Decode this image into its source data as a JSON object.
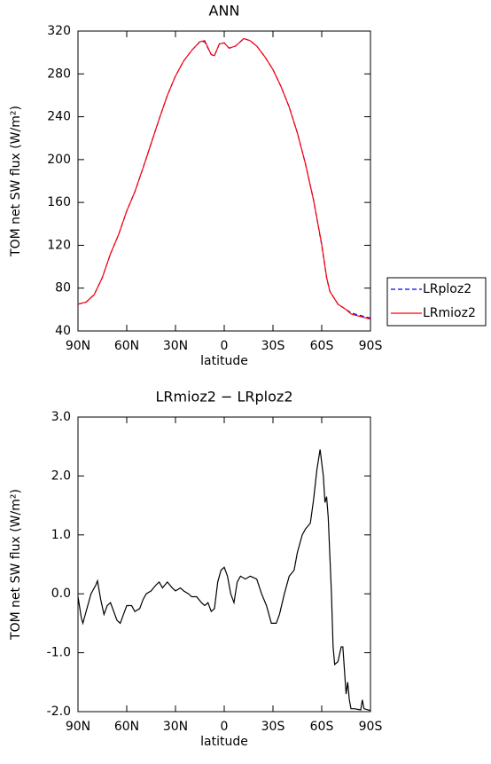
{
  "chart_data": [
    {
      "type": "line",
      "title": "ANN",
      "x_label": "latitude",
      "y_label": "TOM net SW flux (W/m²)",
      "x": [
        90,
        85,
        80,
        75,
        70,
        65,
        60,
        55,
        50,
        45,
        40,
        35,
        30,
        25,
        20,
        15,
        12,
        8,
        6,
        3,
        0,
        -3,
        -7,
        -12,
        -16,
        -20,
        -25,
        -30,
        -35,
        -40,
        -45,
        -50,
        -55,
        -60,
        -63,
        -65,
        -70,
        -75,
        -78,
        -80,
        -85,
        -90
      ],
      "series": [
        {
          "name": "LRploz2",
          "color": "#0000ff",
          "dash": true,
          "values": [
            65,
            67,
            74,
            90,
            112,
            130,
            152,
            170,
            192,
            215,
            238,
            260,
            278,
            292,
            302,
            310,
            310,
            298,
            297,
            308,
            309,
            304,
            306,
            313,
            311,
            306,
            296,
            284,
            268,
            249,
            225,
            196,
            162,
            120,
            90,
            77,
            65,
            60,
            57,
            56,
            54,
            52
          ]
        },
        {
          "name": "LRmioz2",
          "color": "#ff0000",
          "dash": false,
          "values": [
            65,
            67,
            74,
            90,
            112,
            130,
            152,
            170,
            192,
            215,
            238,
            260,
            278,
            292,
            302,
            310,
            311,
            298,
            297,
            308,
            309,
            304,
            306,
            313,
            311,
            306,
            296,
            284,
            268,
            249,
            225,
            196,
            162,
            121,
            90,
            77,
            65,
            60,
            56,
            55,
            53,
            51
          ]
        }
      ],
      "xlim": [
        90,
        -90
      ],
      "xticks": [
        {
          "value": 90,
          "label": "90N"
        },
        {
          "value": 60,
          "label": "60N"
        },
        {
          "value": 30,
          "label": "30N"
        },
        0,
        {
          "value": -30,
          "label": "30S"
        },
        {
          "value": -60,
          "label": "60S"
        },
        {
          "value": -90,
          "label": "90S"
        }
      ],
      "ylim": [
        40,
        320
      ],
      "yticks": [
        40,
        80,
        120,
        160,
        200,
        240,
        280,
        320
      ],
      "legend": "right"
    },
    {
      "type": "line",
      "title": "LRmioz2 − LRploz2",
      "x_label": "latitude",
      "y_label": "TOM net SW flux (W/m²)",
      "x": [
        90,
        88,
        87,
        85,
        82,
        79,
        78,
        76,
        74,
        72,
        70,
        68,
        66,
        64,
        62,
        60,
        57,
        55,
        52,
        50,
        48,
        45,
        42,
        40,
        38,
        35,
        32,
        30,
        27,
        25,
        22,
        20,
        17,
        14,
        12,
        10,
        8,
        6,
        4,
        2,
        0,
        -2,
        -4,
        -6,
        -8,
        -10,
        -13,
        -16,
        -20,
        -23,
        -26,
        -29,
        -32,
        -34,
        -37,
        -40,
        -43,
        -45,
        -48,
        -50,
        -53,
        -55,
        -57,
        -59,
        -61,
        -62,
        -63,
        -64,
        -66,
        -67,
        -68,
        -70,
        -72,
        -73,
        -75,
        -76,
        -77,
        -78,
        -80,
        -84,
        -85,
        -86,
        -90
      ],
      "series": [
        {
          "name": "LRmioz2 − LRploz2",
          "color": "#000000",
          "dash": false,
          "values": [
            -0.05,
            -0.4,
            -0.5,
            -0.3,
            0.0,
            0.15,
            0.22,
            -0.1,
            -0.35,
            -0.2,
            -0.15,
            -0.3,
            -0.45,
            -0.5,
            -0.35,
            -0.2,
            -0.2,
            -0.3,
            -0.25,
            -0.1,
            0.0,
            0.05,
            0.15,
            0.2,
            0.1,
            0.2,
            0.1,
            0.05,
            0.1,
            0.05,
            0.0,
            -0.05,
            -0.05,
            -0.15,
            -0.2,
            -0.15,
            -0.3,
            -0.25,
            0.2,
            0.4,
            0.45,
            0.3,
            0.0,
            -0.15,
            0.2,
            0.3,
            0.25,
            0.3,
            0.25,
            0.0,
            -0.2,
            -0.5,
            -0.5,
            -0.35,
            0.0,
            0.3,
            0.4,
            0.7,
            1.0,
            1.1,
            1.2,
            1.6,
            2.1,
            2.45,
            2.0,
            1.55,
            1.65,
            1.3,
            0.0,
            -0.9,
            -1.2,
            -1.15,
            -0.9,
            -0.9,
            -1.7,
            -1.5,
            -1.8,
            -1.95,
            -1.95,
            -1.97,
            -1.8,
            -1.95,
            -1.98
          ]
        }
      ],
      "xlim": [
        90,
        -90
      ],
      "xticks": [
        {
          "value": 90,
          "label": "90N"
        },
        {
          "value": 60,
          "label": "60N"
        },
        {
          "value": 30,
          "label": "30N"
        },
        0,
        {
          "value": -30,
          "label": "30S"
        },
        {
          "value": -60,
          "label": "60S"
        },
        {
          "value": -90,
          "label": "90S"
        }
      ],
      "ylim": [
        -2,
        3
      ],
      "yticks": [
        {
          "value": -2,
          "label": "-2.0"
        },
        {
          "value": -1,
          "label": "-1.0"
        },
        {
          "value": 0,
          "label": "0.0"
        },
        {
          "value": 1,
          "label": "1.0"
        },
        {
          "value": 2,
          "label": "2.0"
        },
        {
          "value": 3,
          "label": "3.0"
        }
      ]
    }
  ]
}
